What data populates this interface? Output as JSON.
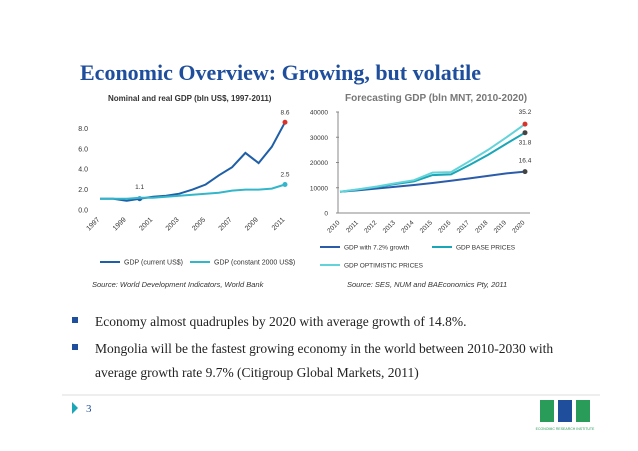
{
  "title": "Economic Overview: Growing, but volatile",
  "chart_data": [
    {
      "type": "line",
      "title": "Nominal and real GDP (bln US$, 1997-2011)",
      "categories": [
        "1997",
        null,
        "1999",
        null,
        "2001",
        null,
        "2003",
        null,
        "2005",
        null,
        "2007",
        null,
        "2009",
        null,
        "2011"
      ],
      "series": [
        {
          "name": "GDP (current US$)",
          "color": "#1f5fa8",
          "values": [
            1.1,
            1.1,
            0.9,
            1.1,
            1.3,
            1.4,
            1.6,
            2.0,
            2.5,
            3.4,
            4.2,
            5.6,
            4.6,
            6.2,
            8.6
          ],
          "value_labels": [
            null,
            null,
            null,
            "1.1",
            null,
            null,
            null,
            null,
            null,
            null,
            null,
            null,
            null,
            null,
            "8.6"
          ]
        },
        {
          "name": "GDP (constant 2000 US$)",
          "color": "#33b6c9",
          "values": [
            1.1,
            1.1,
            1.1,
            1.2,
            1.2,
            1.3,
            1.4,
            1.5,
            1.6,
            1.7,
            1.9,
            2.0,
            2.0,
            2.1,
            2.5
          ],
          "value_labels": [
            null,
            null,
            null,
            null,
            null,
            null,
            null,
            null,
            null,
            null,
            null,
            null,
            null,
            null,
            "2.5"
          ]
        }
      ],
      "ylim": [
        0,
        10
      ],
      "yticks": [
        {
          "value": 0,
          "label": "0.0"
        },
        {
          "value": 2,
          "label": "2.0"
        },
        {
          "value": 4,
          "label": "4.0"
        },
        {
          "value": 6,
          "label": "6.0"
        },
        {
          "value": 8,
          "label": "8.0"
        }
      ],
      "grid": false,
      "legend": "bottom",
      "source": "Source: World Development Indicators, World Bank"
    },
    {
      "type": "line",
      "title": "Forecasting GDP (bln MNT, 2010-2020)",
      "categories": [
        "2010",
        "2011",
        "2012",
        "2013",
        "2014",
        "2015",
        "2016",
        "2017",
        "2018",
        "2019",
        "2020"
      ],
      "series": [
        {
          "name": "GDP with 7.2% growth",
          "color": "#2a5caa",
          "values": [
            8400,
            9000,
            9700,
            10400,
            11100,
            11900,
            12800,
            13700,
            14700,
            15700,
            16400
          ],
          "value_labels": [
            null,
            null,
            null,
            null,
            null,
            null,
            null,
            null,
            null,
            null,
            "16.4"
          ]
        },
        {
          "name": "GDP BASE PRICES",
          "color": "#1aa6b7",
          "values": [
            8400,
            9300,
            10300,
            11500,
            12500,
            15000,
            15300,
            19000,
            23000,
            27500,
            31800
          ],
          "value_labels": [
            null,
            null,
            null,
            null,
            null,
            null,
            null,
            null,
            null,
            null,
            "31.8"
          ]
        },
        {
          "name": "GDP OPTIMISTIC PRICES",
          "color": "#63d3d9",
          "values": [
            8400,
            9400,
            10500,
            11800,
            13000,
            16000,
            16200,
            20500,
            25000,
            30000,
            35200
          ],
          "value_labels": [
            null,
            null,
            null,
            null,
            null,
            null,
            null,
            null,
            null,
            null,
            "35.2"
          ]
        }
      ],
      "ylim": [
        0,
        40000
      ],
      "yticks": [
        0,
        10000,
        20000,
        30000,
        40000
      ],
      "grid": false,
      "legend": "bottom",
      "source": "Source: SES, NUM and BAEconomics Pty, 2011"
    }
  ],
  "bullets": [
    "Economy almost quadruples by 2020 with average growth of 14.8%.",
    "Mongolia will be the fastest growing economy in the world between 2010-2030 with average growth rate 9.7% (Citigroup Global Markets, 2011)"
  ],
  "page_number": "3",
  "logo_text": "ECONOMIC RESEARCH INSTITUTE"
}
